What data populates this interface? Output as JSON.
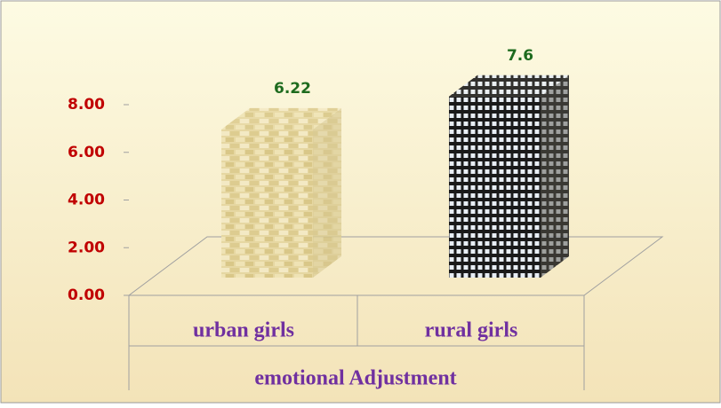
{
  "chart_data": {
    "type": "bar3d",
    "categories": [
      "urban girls",
      "rural girls"
    ],
    "values": [
      6.22,
      7.6
    ],
    "xlabel": "emotional Adjustment",
    "ylim": [
      0,
      8
    ],
    "yticks": [
      {
        "value": 0,
        "label": "0.00"
      },
      {
        "value": 2,
        "label": "2.00"
      },
      {
        "value": 4,
        "label": "4.00"
      },
      {
        "value": 6,
        "label": "6.00"
      },
      {
        "value": 8,
        "label": "8.00"
      }
    ]
  }
}
